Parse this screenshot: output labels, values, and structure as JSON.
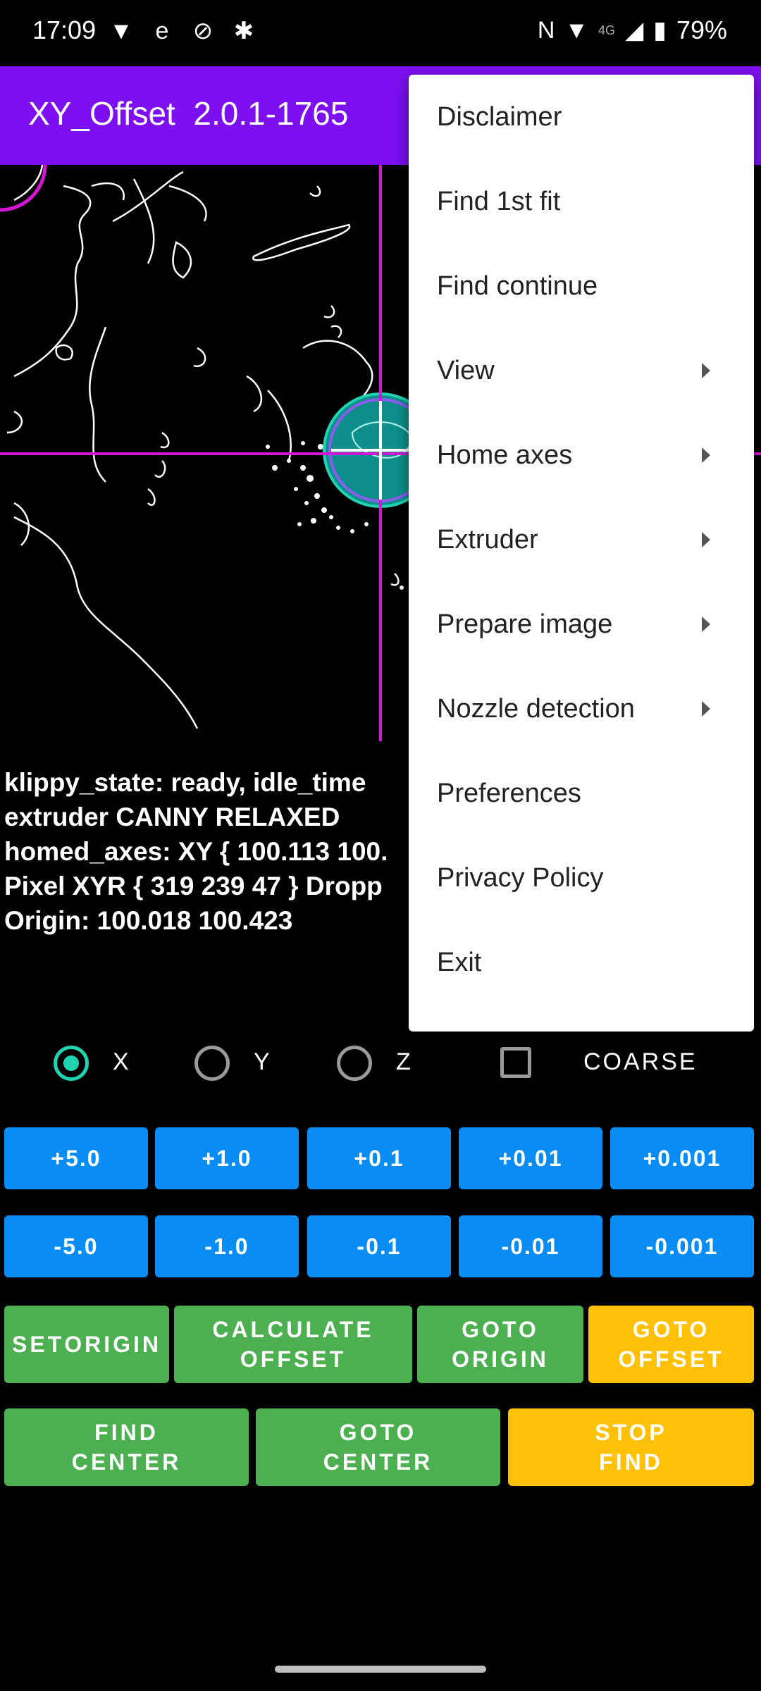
{
  "status_bar": {
    "time": "17:09",
    "left_icons": [
      "vpn-shield-icon",
      "edge-browser-icon",
      "sync-off-icon",
      "walking-icon"
    ],
    "right_icons": [
      "nfc-icon",
      "wifi-icon",
      "signal-4g-icon",
      "battery-charging-icon"
    ],
    "network": "4G",
    "battery": "79%"
  },
  "app_bar": {
    "title": "XY_Offset  2.0.1-1765",
    "color": "#7c10f0"
  },
  "info": {
    "lines": [
      "klippy_state: ready, idle_time",
      "extruder CANNY RELAXED",
      "homed_axes: XY { 100.113 100.",
      "Pixel XYR { 319 239 47 } Dropp",
      "Origin: 100.018 100.423"
    ]
  },
  "axis_select": {
    "options": [
      {
        "label": "X",
        "checked": true
      },
      {
        "label": "Y",
        "checked": false
      },
      {
        "label": "Z",
        "checked": false
      }
    ],
    "coarse_label": "COARSE",
    "coarse_checked": false,
    "accent": "#1fd3b3"
  },
  "jog": {
    "plus": [
      "+5.0",
      "+1.0",
      "+0.1",
      "+0.01",
      "+0.001"
    ],
    "minus": [
      "-5.0",
      "-1.0",
      "-0.1",
      "-0.01",
      "-0.001"
    ],
    "color": "#0a8cf5"
  },
  "actions": {
    "set_origin": [
      "SET",
      "ORIGIN"
    ],
    "calculate_offset": [
      "CALCULATE",
      "OFFSET"
    ],
    "goto_origin": [
      "GOTO",
      "ORIGIN"
    ],
    "goto_offset": [
      "GOTO",
      "OFFSET"
    ],
    "find_center": [
      "FIND",
      "CENTER"
    ],
    "goto_center": [
      "GOTO",
      "CENTER"
    ],
    "stop_find": [
      "STOP",
      "FIND"
    ],
    "green": "#4caf50",
    "yellow": "#ffc107"
  },
  "menu": {
    "items": [
      {
        "label": "Disclaimer",
        "submenu": false
      },
      {
        "label": "Find 1st fit",
        "submenu": false
      },
      {
        "label": "Find continue",
        "submenu": false
      },
      {
        "label": "View",
        "submenu": true
      },
      {
        "label": "Home axes",
        "submenu": true
      },
      {
        "label": "Extruder",
        "submenu": true
      },
      {
        "label": "Prepare image",
        "submenu": true
      },
      {
        "label": "Nozzle detection",
        "submenu": true
      },
      {
        "label": "Preferences",
        "submenu": false
      },
      {
        "label": "Privacy Policy",
        "submenu": false
      },
      {
        "label": "Exit",
        "submenu": false
      }
    ]
  }
}
